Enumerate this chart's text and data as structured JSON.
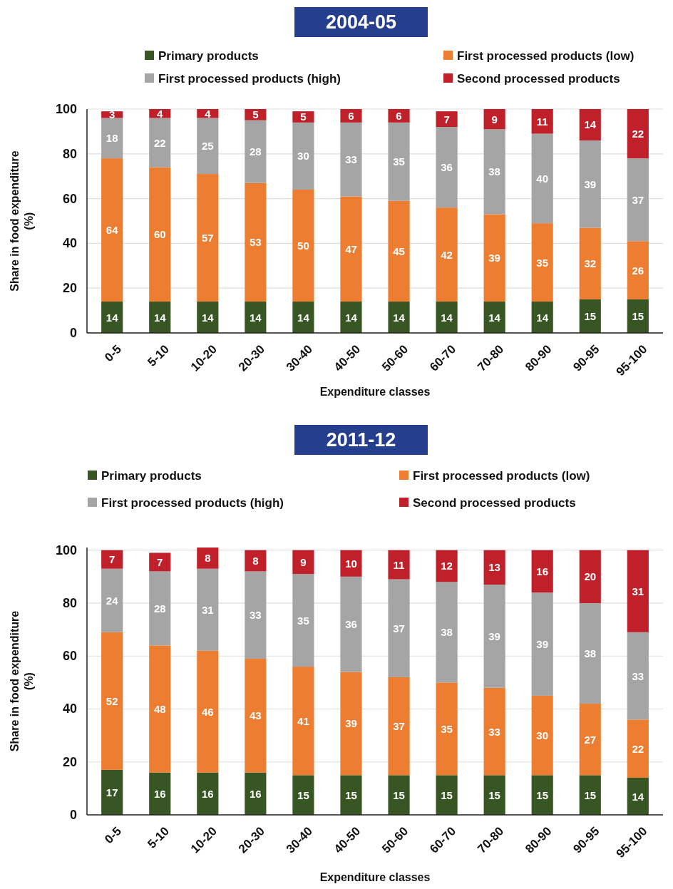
{
  "chart_data": [
    {
      "type": "bar",
      "title": "2004-05",
      "xlabel": "Expenditure classes",
      "ylabel": "Share in food expenditure\n(%)",
      "categories": [
        "0-5",
        "5-10",
        "10-20",
        "20-30",
        "30-40",
        "40-50",
        "50-60",
        "60-70",
        "70-80",
        "80-90",
        "90-95",
        "95-100"
      ],
      "series": [
        {
          "name": "Primary products",
          "color": "#375623",
          "values": [
            14,
            14,
            14,
            14,
            14,
            14,
            14,
            14,
            14,
            14,
            15,
            15
          ]
        },
        {
          "name": "First processed products (low)",
          "color": "#ed7d31",
          "values": [
            64,
            60,
            57,
            53,
            50,
            47,
            45,
            42,
            39,
            35,
            32,
            26
          ]
        },
        {
          "name": "First processed products (high)",
          "color": "#a5a5a5",
          "values": [
            18,
            22,
            25,
            28,
            30,
            33,
            35,
            36,
            38,
            40,
            39,
            37
          ]
        },
        {
          "name": "Second processed products",
          "color": "#c0202a",
          "values": [
            3,
            4,
            4,
            5,
            5,
            6,
            6,
            7,
            9,
            11,
            14,
            22
          ]
        }
      ],
      "stacked": true,
      "ylim": [
        0,
        100
      ],
      "yticks": [
        0,
        20,
        40,
        60,
        80,
        100
      ],
      "grid": "y",
      "legend": "top",
      "data_labels": true
    },
    {
      "type": "bar",
      "title": "2011-12",
      "xlabel": "Expenditure classes",
      "ylabel": "Share in food expenditure\n(%)",
      "categories": [
        "0-5",
        "5-10",
        "10-20",
        "20-30",
        "30-40",
        "40-50",
        "50-60",
        "60-70",
        "70-80",
        "80-90",
        "90-95",
        "95-100"
      ],
      "series": [
        {
          "name": "Primary products",
          "color": "#375623",
          "values": [
            17,
            16,
            16,
            16,
            15,
            15,
            15,
            15,
            15,
            15,
            15,
            14
          ]
        },
        {
          "name": "First processed products (low)",
          "color": "#ed7d31",
          "values": [
            52,
            48,
            46,
            43,
            41,
            39,
            37,
            35,
            33,
            30,
            27,
            22
          ]
        },
        {
          "name": "First processed products (high)",
          "color": "#a5a5a5",
          "values": [
            24,
            28,
            31,
            33,
            35,
            36,
            37,
            38,
            39,
            39,
            38,
            33
          ]
        },
        {
          "name": "Second processed products",
          "color": "#c0202a",
          "values": [
            7,
            7,
            8,
            8,
            9,
            10,
            11,
            12,
            13,
            16,
            20,
            31
          ]
        }
      ],
      "stacked": true,
      "ylim": [
        0,
        101
      ],
      "yticks": [
        0,
        20,
        40,
        60,
        80,
        100
      ],
      "grid": "y",
      "legend": "top",
      "data_labels": true
    }
  ]
}
